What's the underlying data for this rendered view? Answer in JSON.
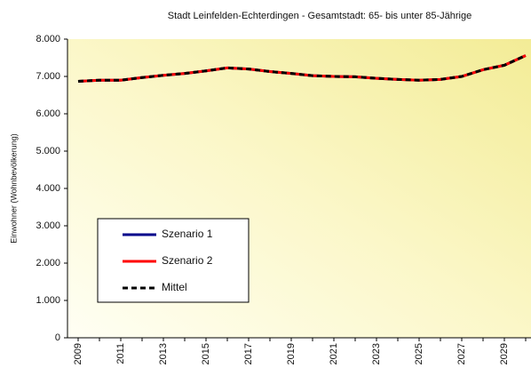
{
  "chart_data": {
    "type": "line",
    "title": "Stadt Leinfelden-Echterdingen -  Gesamtstadt:  65- bis unter 85-Jährige",
    "y_label": "Einwohner (Wohnbevölkerung)",
    "categories": [
      "2009",
      null,
      "2011",
      null,
      "2013",
      null,
      "2015",
      null,
      "2017",
      null,
      "2019",
      null,
      "2021",
      null,
      "2023",
      null,
      "2025",
      null,
      "2027",
      null,
      "2029",
      null
    ],
    "series": [
      {
        "name": "Szenario 1",
        "color": "#00008b",
        "dashed": false,
        "values": [
          6870,
          6900,
          6900,
          6970,
          7030,
          7080,
          7150,
          7230,
          7200,
          7130,
          7080,
          7020,
          7000,
          6990,
          6950,
          6920,
          6900,
          6920,
          7000,
          7180,
          7300,
          7560
        ]
      },
      {
        "name": "Szenario 2",
        "color": "#ff0000",
        "dashed": false,
        "values": [
          6870,
          6900,
          6900,
          6970,
          7030,
          7080,
          7150,
          7230,
          7200,
          7130,
          7080,
          7020,
          7000,
          6990,
          6950,
          6920,
          6900,
          6920,
          7000,
          7180,
          7300,
          7560
        ]
      },
      {
        "name": "Mittel",
        "color": "#000000",
        "dashed": true,
        "values": [
          6870,
          6900,
          6900,
          6970,
          7030,
          7080,
          7150,
          7230,
          7200,
          7130,
          7080,
          7020,
          7000,
          6990,
          6950,
          6920,
          6900,
          6920,
          7000,
          7180,
          7300,
          7560
        ]
      }
    ],
    "ylim": [
      0,
      8000
    ],
    "yticks": [
      0,
      {
        "value": 1000,
        "label": "1.000"
      },
      {
        "value": 2000,
        "label": "2.000"
      },
      {
        "value": 3000,
        "label": "3.000"
      },
      {
        "value": 4000,
        "label": "4.000"
      },
      {
        "value": 5000,
        "label": "5.000"
      },
      {
        "value": 6000,
        "label": "6.000"
      },
      {
        "value": 7000,
        "label": "7.000"
      },
      {
        "value": 8000,
        "label": "8.000"
      }
    ],
    "legend": "lower left"
  }
}
